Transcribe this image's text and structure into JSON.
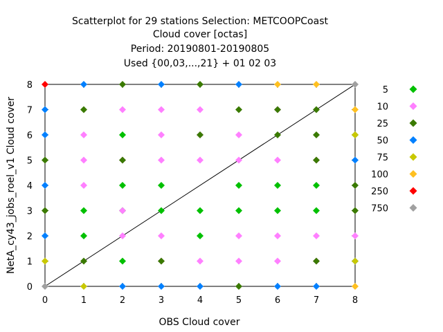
{
  "chart_data": {
    "type": "scatter",
    "title_lines": [
      "Scatterplot for   29 stations Selection: METCOOPCoast",
      "Cloud cover [octas]",
      "Period: 20190801-20190805",
      "Used {00,03,...,21} + 01 02 03"
    ],
    "xlabel": "OBS Cloud cover",
    "ylabel": "NetA_cy43_jobs_roel_v1 Cloud cover",
    "xlim": [
      0,
      8
    ],
    "ylim": [
      0,
      8
    ],
    "xticks": [
      0,
      1,
      2,
      3,
      4,
      5,
      6,
      7,
      8
    ],
    "yticks": [
      0,
      1,
      2,
      3,
      4,
      5,
      6,
      7,
      8
    ],
    "diagonal_line": true,
    "grid": false,
    "legend_position": "right",
    "legend_title": "",
    "series": [
      {
        "name": "5",
        "color": "#00c000",
        "marker": "diamond",
        "points": [
          [
            1,
            2
          ],
          [
            1,
            3
          ],
          [
            2,
            1
          ],
          [
            2,
            3
          ],
          [
            2,
            4
          ],
          [
            2,
            6
          ],
          [
            3,
            3
          ],
          [
            3,
            4
          ],
          [
            4,
            2
          ],
          [
            4,
            3
          ],
          [
            5,
            3
          ],
          [
            5,
            4
          ],
          [
            6,
            3
          ],
          [
            6,
            4
          ],
          [
            7,
            3
          ],
          [
            7,
            4
          ]
        ]
      },
      {
        "name": "10",
        "color": "#ff80ff",
        "marker": "diamond",
        "points": [
          [
            1,
            4
          ],
          [
            1,
            5
          ],
          [
            1,
            6
          ],
          [
            2,
            2
          ],
          [
            2,
            3
          ],
          [
            2,
            5
          ],
          [
            2,
            7
          ],
          [
            3,
            1
          ],
          [
            3,
            2
          ],
          [
            3,
            5
          ],
          [
            3,
            6
          ],
          [
            3,
            7
          ],
          [
            4,
            1
          ],
          [
            4,
            5
          ],
          [
            4,
            6
          ],
          [
            4,
            7
          ],
          [
            5,
            1
          ],
          [
            5,
            2
          ],
          [
            5,
            5
          ],
          [
            5,
            6
          ],
          [
            6,
            1
          ],
          [
            6,
            2
          ],
          [
            6,
            5
          ],
          [
            6,
            7
          ],
          [
            7,
            1
          ],
          [
            7,
            2
          ],
          [
            7,
            5
          ],
          [
            8,
            2
          ]
        ]
      },
      {
        "name": "25",
        "color": "#3a7a00",
        "marker": "diamond",
        "points": [
          [
            0,
            3
          ],
          [
            0,
            5
          ],
          [
            1,
            1
          ],
          [
            1,
            7
          ],
          [
            2,
            5
          ],
          [
            2,
            8
          ],
          [
            3,
            1
          ],
          [
            4,
            6
          ],
          [
            4,
            8
          ],
          [
            5,
            0
          ],
          [
            5,
            7
          ],
          [
            6,
            6
          ],
          [
            6,
            7
          ],
          [
            7,
            1
          ],
          [
            7,
            5
          ],
          [
            7,
            6
          ],
          [
            7,
            7
          ],
          [
            8,
            3
          ],
          [
            8,
            4
          ],
          [
            8,
            6
          ]
        ]
      },
      {
        "name": "50",
        "color": "#0080ff",
        "marker": "diamond",
        "points": [
          [
            0,
            2
          ],
          [
            0,
            4
          ],
          [
            0,
            6
          ],
          [
            0,
            7
          ],
          [
            1,
            8
          ],
          [
            2,
            0
          ],
          [
            3,
            0
          ],
          [
            3,
            8
          ],
          [
            4,
            0
          ],
          [
            5,
            8
          ],
          [
            6,
            0
          ],
          [
            7,
            0
          ],
          [
            8,
            1
          ],
          [
            8,
            5
          ]
        ]
      },
      {
        "name": "75",
        "color": "#c8c800",
        "marker": "diamond",
        "points": [
          [
            0,
            1
          ],
          [
            1,
            0
          ],
          [
            8,
            1
          ],
          [
            8,
            6
          ]
        ]
      },
      {
        "name": "100",
        "color": "#ffc020",
        "marker": "diamond",
        "points": [
          [
            6,
            8
          ],
          [
            7,
            8
          ],
          [
            8,
            0
          ],
          [
            8,
            7
          ]
        ]
      },
      {
        "name": "250",
        "color": "#ff0000",
        "marker": "diamond",
        "points": [
          [
            0,
            8
          ]
        ]
      },
      {
        "name": "750",
        "color": "#a0a0a0",
        "marker": "diamond",
        "points": [
          [
            0,
            0
          ],
          [
            8,
            8
          ]
        ]
      }
    ]
  }
}
